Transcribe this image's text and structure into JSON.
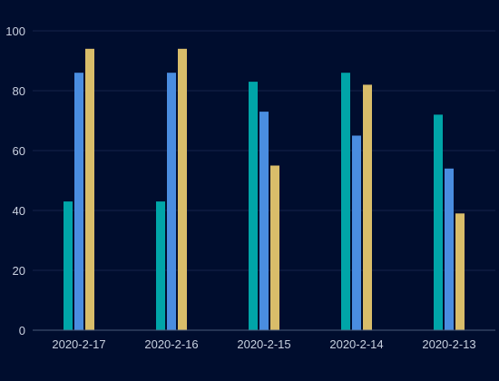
{
  "chart_data": {
    "type": "bar",
    "title": "",
    "xlabel": "",
    "ylabel": "",
    "categories": [
      "2020-2-17",
      "2020-2-16",
      "2020-2-15",
      "2020-2-14",
      "2020-2-13"
    ],
    "ylim": [
      0,
      100
    ],
    "yticks": [
      "0",
      "20",
      "40",
      "60",
      "80",
      "100"
    ],
    "grid": true,
    "legend": "none",
    "series": [
      {
        "values": [
          43,
          43,
          83,
          86,
          72
        ],
        "color": "#00a5a8"
      },
      {
        "values": [
          86,
          86,
          73,
          65,
          54
        ],
        "color": "#4a8de0"
      },
      {
        "values": [
          94,
          94,
          55,
          82,
          39
        ],
        "color": "#d9bd6a"
      }
    ]
  }
}
